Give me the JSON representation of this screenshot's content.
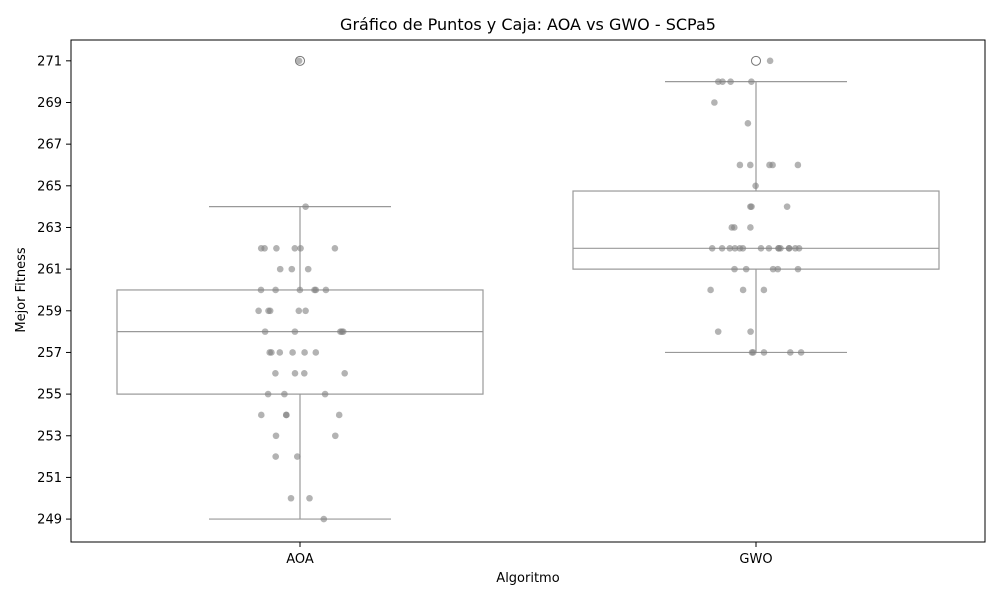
{
  "chart_data": {
    "type": "box",
    "title": "Gráfico de Puntos y Caja: AOA vs GWO - SCPa5",
    "xlabel": "Algoritmo",
    "ylabel": "Mejor Fitness",
    "categories": [
      "AOA",
      "GWO"
    ],
    "y_ticks": [
      249,
      251,
      253,
      255,
      257,
      259,
      261,
      263,
      265,
      267,
      269,
      271
    ],
    "ylim": [
      247.9,
      272.0
    ],
    "grid": false,
    "colors": {
      "box_edge": "#999999",
      "point_fill": "#808080",
      "box_fill": "#ffffff"
    },
    "boxes": [
      {
        "category": "AOA",
        "whisker_low": 249,
        "q1": 255,
        "median": 258,
        "q3": 260,
        "whisker_high": 264,
        "outliers": [
          271
        ]
      },
      {
        "category": "GWO",
        "whisker_low": 257,
        "q1": 261,
        "median": 262,
        "q3": 264.75,
        "whisker_high": 270,
        "outliers": [
          271
        ]
      }
    ],
    "points": [
      {
        "category": "AOA",
        "values": [
          271,
          264,
          262,
          262,
          262,
          262,
          262,
          262,
          261,
          261,
          261,
          260,
          260,
          260,
          260,
          260,
          260,
          259,
          259,
          259,
          259,
          259,
          258,
          258,
          258,
          258,
          258,
          257,
          257,
          257,
          257,
          257,
          257,
          256,
          256,
          256,
          256,
          255,
          255,
          255,
          254,
          254,
          254,
          254,
          253,
          253,
          252,
          252,
          250,
          250,
          249
        ]
      },
      {
        "category": "GWO",
        "values": [
          271,
          270,
          270,
          270,
          270,
          269,
          268,
          266,
          266,
          266,
          266,
          266,
          265,
          264,
          264,
          264,
          263,
          263,
          263,
          262,
          262,
          262,
          262,
          262,
          262,
          262,
          262,
          262,
          262,
          262,
          262,
          262,
          262,
          262,
          261,
          261,
          261,
          261,
          261,
          260,
          260,
          260,
          258,
          258,
          257,
          257,
          257,
          257,
          257
        ]
      }
    ]
  }
}
